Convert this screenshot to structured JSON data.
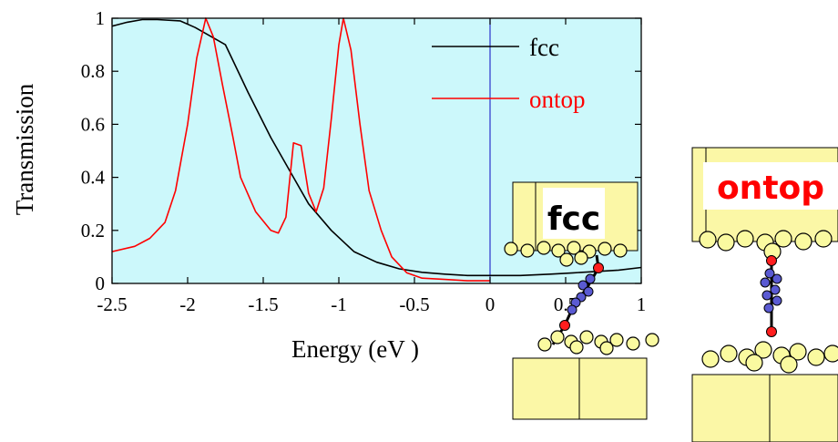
{
  "chart_data": {
    "type": "line",
    "title": "",
    "xlabel": "Energy (eV )",
    "ylabel": "Transmission",
    "xlim": [
      -2.5,
      1
    ],
    "ylim": [
      0,
      1
    ],
    "x_ticks": [
      "-2.5",
      "-2",
      "-1.5",
      "-1",
      "-0.5",
      "0",
      "0.5",
      "1"
    ],
    "y_ticks": [
      "0",
      "0.2",
      "0.4",
      "0.6",
      "0.8",
      "1"
    ],
    "fermi_line_x": 0,
    "plot_background": "#ccf8fb",
    "legend_position": "top-right",
    "series": [
      {
        "name": "fcc",
        "color": "#000000",
        "points": [
          [
            -2.5,
            0.97
          ],
          [
            -2.4,
            0.985
          ],
          [
            -2.3,
            0.995
          ],
          [
            -2.2,
            0.995
          ],
          [
            -2.05,
            0.99
          ],
          [
            -1.95,
            0.965
          ],
          [
            -1.75,
            0.9
          ],
          [
            -1.6,
            0.72
          ],
          [
            -1.45,
            0.55
          ],
          [
            -1.3,
            0.4
          ],
          [
            -1.2,
            0.3
          ],
          [
            -1.05,
            0.2
          ],
          [
            -0.9,
            0.12
          ],
          [
            -0.75,
            0.08
          ],
          [
            -0.6,
            0.055
          ],
          [
            -0.45,
            0.042
          ],
          [
            -0.3,
            0.035
          ],
          [
            -0.15,
            0.03
          ],
          [
            0,
            0.03
          ],
          [
            0.2,
            0.03
          ],
          [
            0.4,
            0.035
          ],
          [
            0.55,
            0.04
          ],
          [
            0.7,
            0.045
          ],
          [
            0.85,
            0.05
          ],
          [
            1,
            0.06
          ]
        ]
      },
      {
        "name": "ontop",
        "color": "#ff0000",
        "points": [
          [
            -2.5,
            0.12
          ],
          [
            -2.35,
            0.14
          ],
          [
            -2.25,
            0.17
          ],
          [
            -2.15,
            0.23
          ],
          [
            -2.08,
            0.35
          ],
          [
            -2.0,
            0.6
          ],
          [
            -1.94,
            0.85
          ],
          [
            -1.88,
            1.0
          ],
          [
            -1.83,
            0.93
          ],
          [
            -1.77,
            0.75
          ],
          [
            -1.7,
            0.55
          ],
          [
            -1.65,
            0.4
          ],
          [
            -1.55,
            0.27
          ],
          [
            -1.45,
            0.2
          ],
          [
            -1.4,
            0.19
          ],
          [
            -1.35,
            0.25
          ],
          [
            -1.3,
            0.53
          ],
          [
            -1.25,
            0.52
          ],
          [
            -1.2,
            0.34
          ],
          [
            -1.15,
            0.27
          ],
          [
            -1.1,
            0.36
          ],
          [
            -1.05,
            0.62
          ],
          [
            -1.0,
            0.9
          ],
          [
            -0.97,
            1.0
          ],
          [
            -0.92,
            0.88
          ],
          [
            -0.86,
            0.6
          ],
          [
            -0.8,
            0.35
          ],
          [
            -0.72,
            0.2
          ],
          [
            -0.65,
            0.1
          ],
          [
            -0.55,
            0.04
          ],
          [
            -0.45,
            0.02
          ],
          [
            -0.3,
            0.015
          ],
          [
            -0.15,
            0.01
          ],
          [
            0,
            0.01
          ]
        ]
      }
    ]
  },
  "annotations": {
    "fcc_label": "fcc",
    "ontop_label": "ontop"
  },
  "colors": {
    "gold_atom": "#fafaa0",
    "electrode": "#fbf7a6",
    "sulfur": "#ff1e1e",
    "carbon": "#5a5ad2",
    "bond": "#000000"
  }
}
